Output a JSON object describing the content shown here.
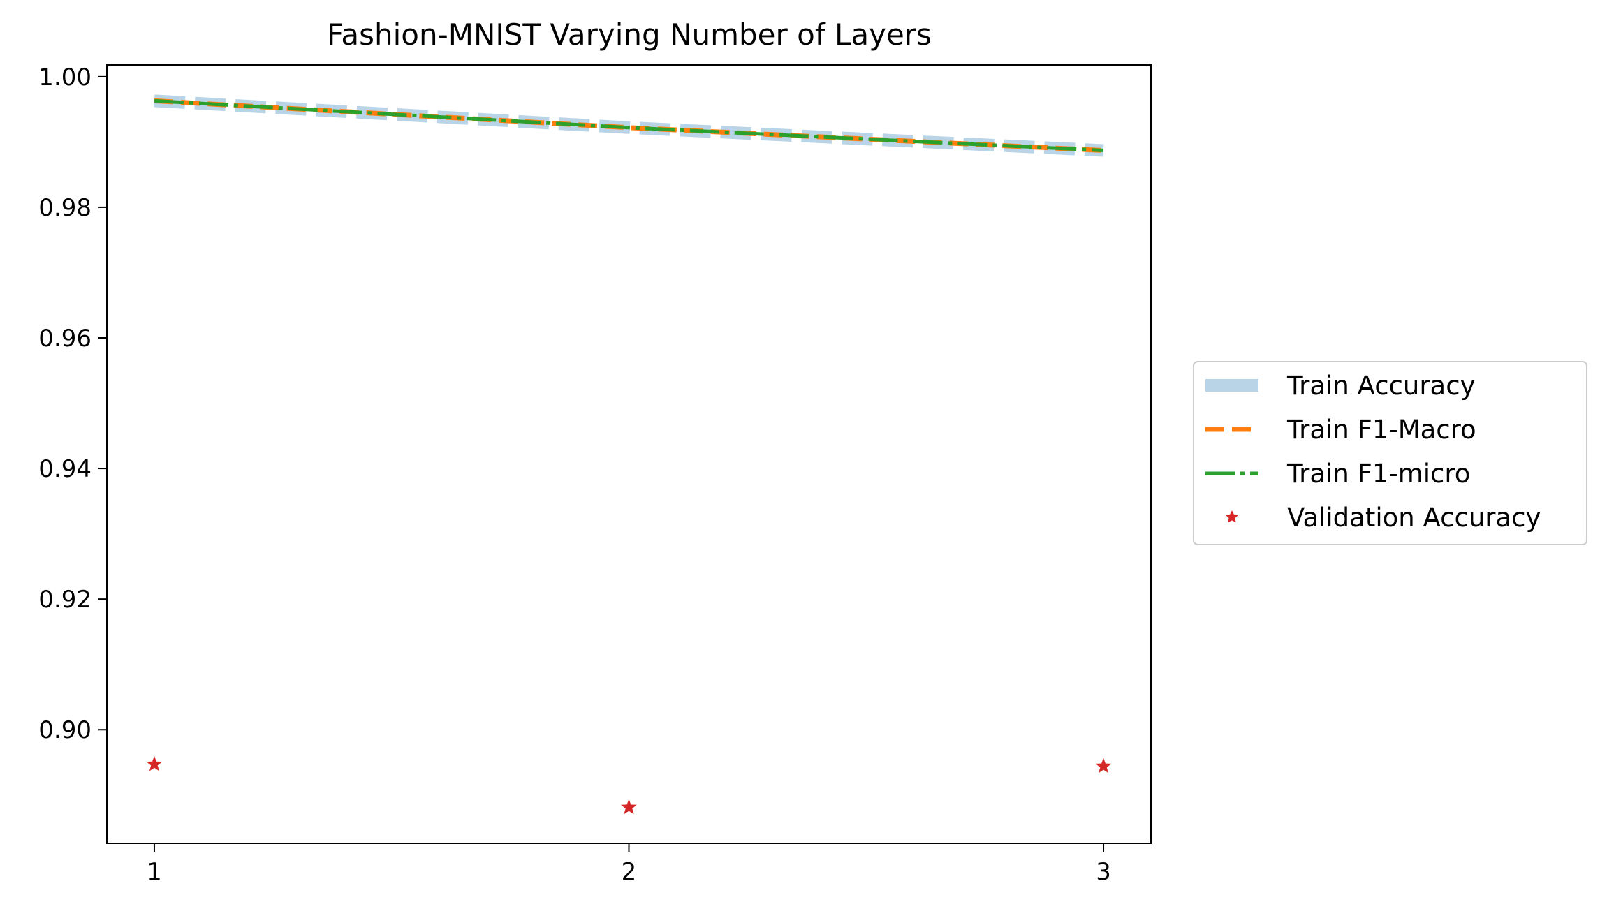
{
  "chart_data": {
    "type": "line",
    "title": "Fashion-MNIST Varying Number of Layers",
    "xlabel": "",
    "ylabel": "",
    "x": [
      1,
      2,
      3
    ],
    "xticks": [
      "1",
      "2",
      "3"
    ],
    "yticks": [
      "0.90",
      "0.92",
      "0.94",
      "0.96",
      "0.98",
      "1.00"
    ],
    "xlim": [
      0.9,
      3.1
    ],
    "ylim": [
      0.8826,
      1.0018
    ],
    "grid": false,
    "legend_position": "center-right-outside",
    "series": [
      {
        "name": "Train Accuracy",
        "values": [
          0.9963,
          0.9922,
          0.9887
        ],
        "color": "#b8d4e6",
        "style": "solid-thick"
      },
      {
        "name": "Train F1-Macro",
        "values": [
          0.9963,
          0.9922,
          0.9887
        ],
        "color": "#ff7f0e",
        "style": "dashed"
      },
      {
        "name": "Train F1-micro",
        "values": [
          0.9963,
          0.9922,
          0.9887
        ],
        "color": "#2ca02c",
        "style": "dashdot"
      },
      {
        "name": "Validation Accuracy",
        "values": [
          0.8947,
          0.8881,
          0.8944
        ],
        "color": "#d62728",
        "style": "star-marker"
      }
    ]
  }
}
